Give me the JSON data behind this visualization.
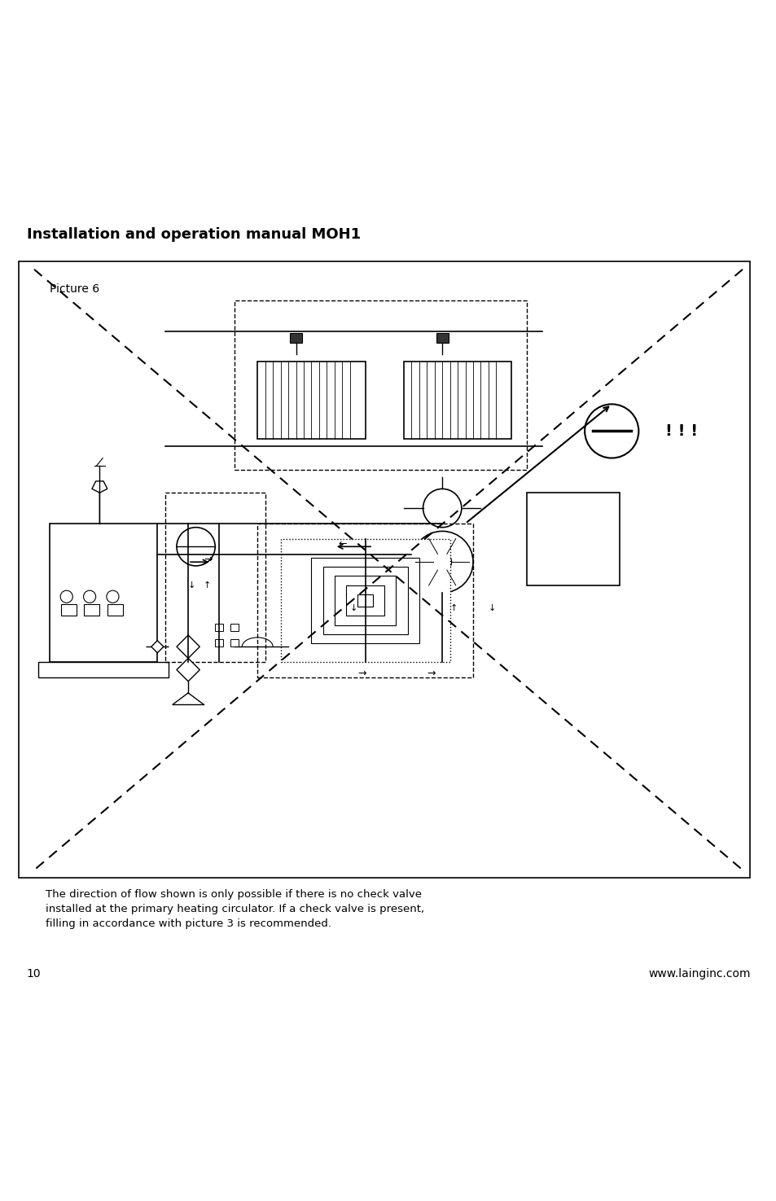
{
  "title": "Installation and operation manual MOH1",
  "picture_label": "Picture 6",
  "page_number": "10",
  "website": "www.lainginc.com",
  "description_text": "The direction of flow shown is only possible if there is no check valve\ninstalled at the primary heating circulator. If a check valve is present,\nfilling in accordance with picture 3 is recommended.",
  "bg_color": "#ffffff",
  "border_color": "#000000",
  "line_color": "#000000",
  "dashed_color": "#555555"
}
